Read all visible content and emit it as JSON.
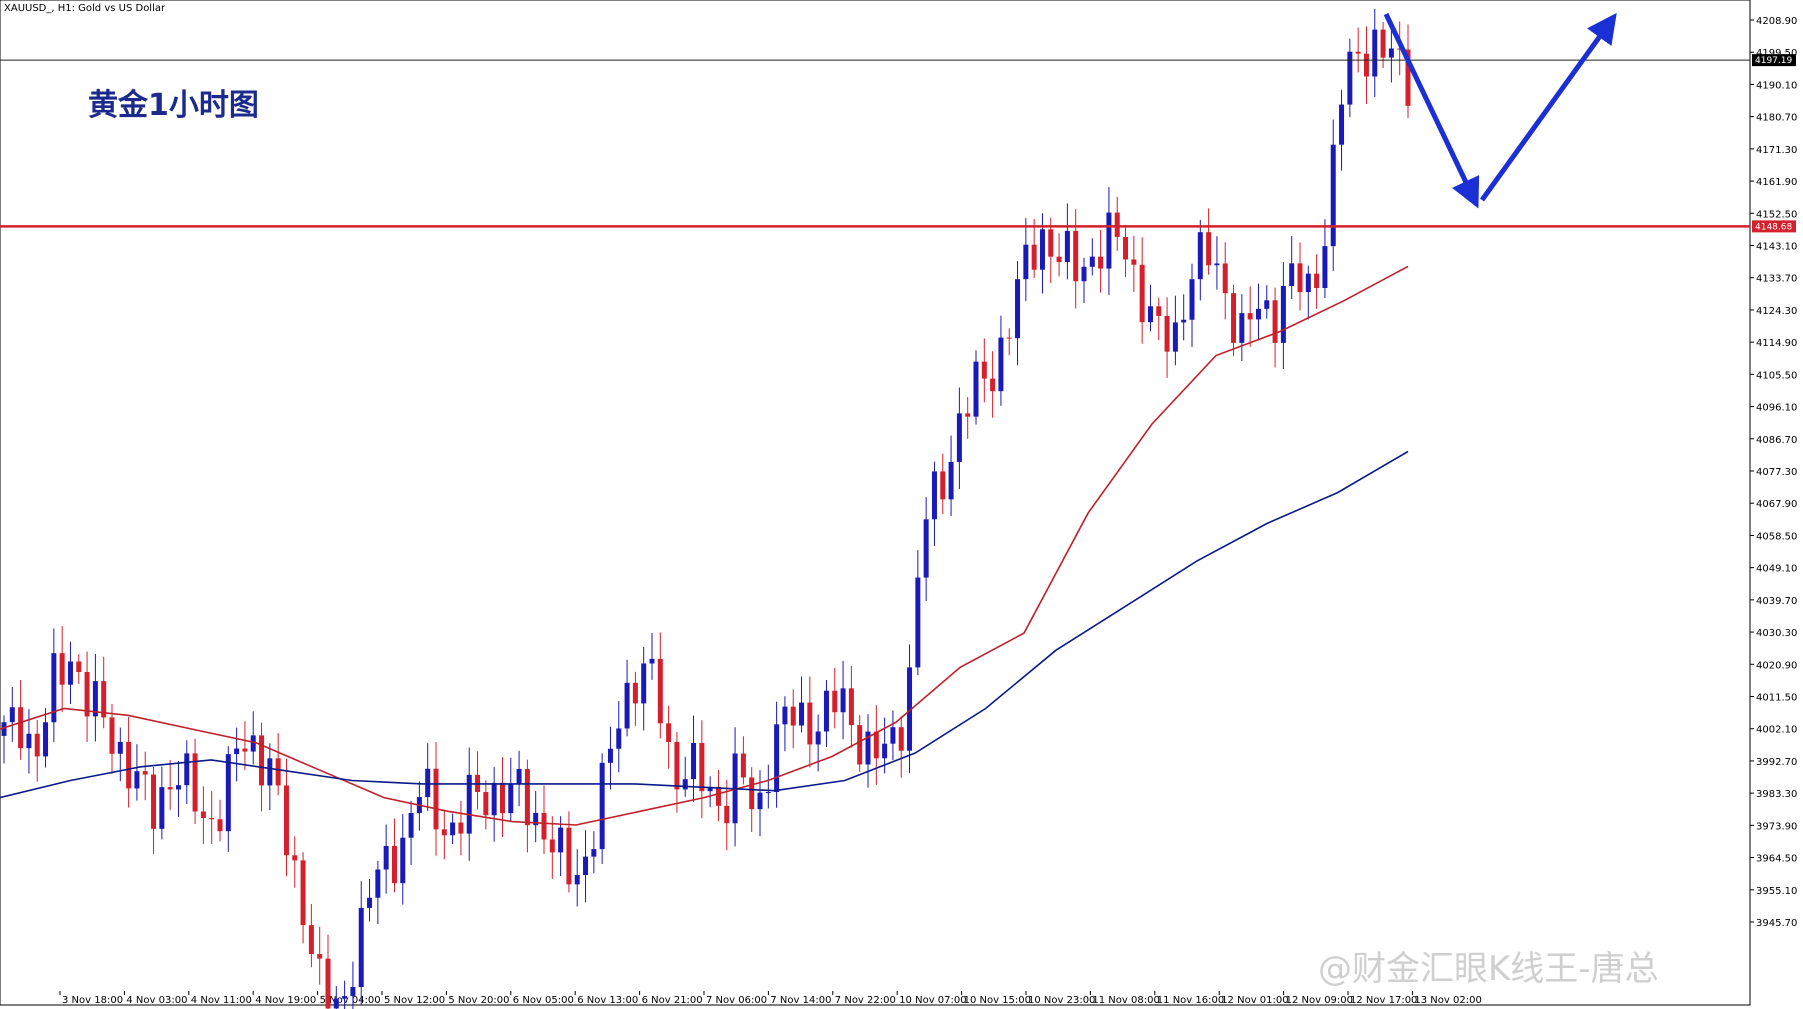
{
  "chart_data": {
    "type": "candlestick",
    "header": "XAUUSD_, H1:  Gold vs US Dollar",
    "title": "黄金1小时图",
    "y_ticks": [
      "4208.90",
      "4199.50",
      "4190.10",
      "4180.70",
      "4171.30",
      "4161.90",
      "4152.50",
      "4143.10",
      "4133.70",
      "4124.30",
      "4114.90",
      "4105.50",
      "4096.10",
      "4086.70",
      "4077.30",
      "4067.90",
      "4058.50",
      "4049.10",
      "4039.70",
      "4030.30",
      "4020.90",
      "4011.50",
      "4002.10",
      "3992.70",
      "3983.30",
      "3973.90",
      "3964.50",
      "3955.10",
      "3945.70"
    ],
    "x_ticks": [
      "3 Nov 18:00",
      "4 Nov 03:00",
      "4 Nov 11:00",
      "4 Nov 19:00",
      "5 Nov 04:00",
      "5 Nov 12:00",
      "5 Nov 20:00",
      "6 Nov 05:00",
      "6 Nov 13:00",
      "6 Nov 21:00",
      "7 Nov 06:00",
      "7 Nov 14:00",
      "7 Nov 22:00",
      "10 Nov 07:00",
      "10 Nov 15:00",
      "10 Nov 23:00",
      "11 Nov 08:00",
      "11 Nov 16:00",
      "12 Nov 01:00",
      "12 Nov 09:00",
      "12 Nov 17:00",
      "13 Nov 02:00"
    ],
    "ylim": [
      3940,
      4213
    ],
    "current_price": "4197.19",
    "resistance_level": "4148.68",
    "price_samples": [
      4000,
      4005,
      3995,
      4015,
      4025,
      4010,
      4004,
      3996,
      3985,
      3978,
      3990,
      3985,
      3975,
      3980,
      3996,
      3998,
      3990,
      3965,
      3950,
      3925,
      3918,
      3938,
      3955,
      3965,
      3970,
      3985,
      3978,
      3970,
      3983,
      3985,
      3980,
      3985,
      3975,
      3965,
      3960,
      3966,
      3988,
      4012,
      4018,
      4015,
      3990,
      3990,
      3985,
      3980,
      3990,
      3975,
      4000,
      4005,
      4004,
      4006,
      4010,
      4002,
      3994,
      3995,
      4010,
      4062,
      4072,
      4090,
      4100,
      4106,
      4118,
      4135,
      4148,
      4140,
      4136,
      4140,
      4144,
      4144,
      4130,
      4116,
      4116,
      4136,
      4140,
      4132,
      4116,
      4124,
      4124,
      4134,
      4128,
      4146,
      4186,
      4200,
      4202,
      4197,
      4193
    ],
    "ma_fast": [
      4002,
      4008,
      4006,
      4002,
      3998,
      3990,
      3982,
      3978,
      3975,
      3974,
      3978,
      3982,
      3987,
      3994,
      4004,
      4020,
      4030,
      4065,
      4091,
      4111,
      4118,
      4127,
      4137
    ],
    "ma_slow": [
      3982,
      3987,
      3991,
      3993,
      3990,
      3987,
      3986,
      3986,
      3986,
      3986,
      3985,
      3984,
      3987,
      3995,
      4008,
      4025,
      4038,
      4051,
      4062,
      4071,
      4083
    ],
    "colors": {
      "up": "#1a1ab8",
      "down": "#d4202c",
      "ma_fast": "#c0202a",
      "ma_slow": "#0a1a8a",
      "arrow": "#1a2fd4",
      "level": "#d4202c"
    }
  },
  "watermark": "@财金汇眼K线王-唐总"
}
